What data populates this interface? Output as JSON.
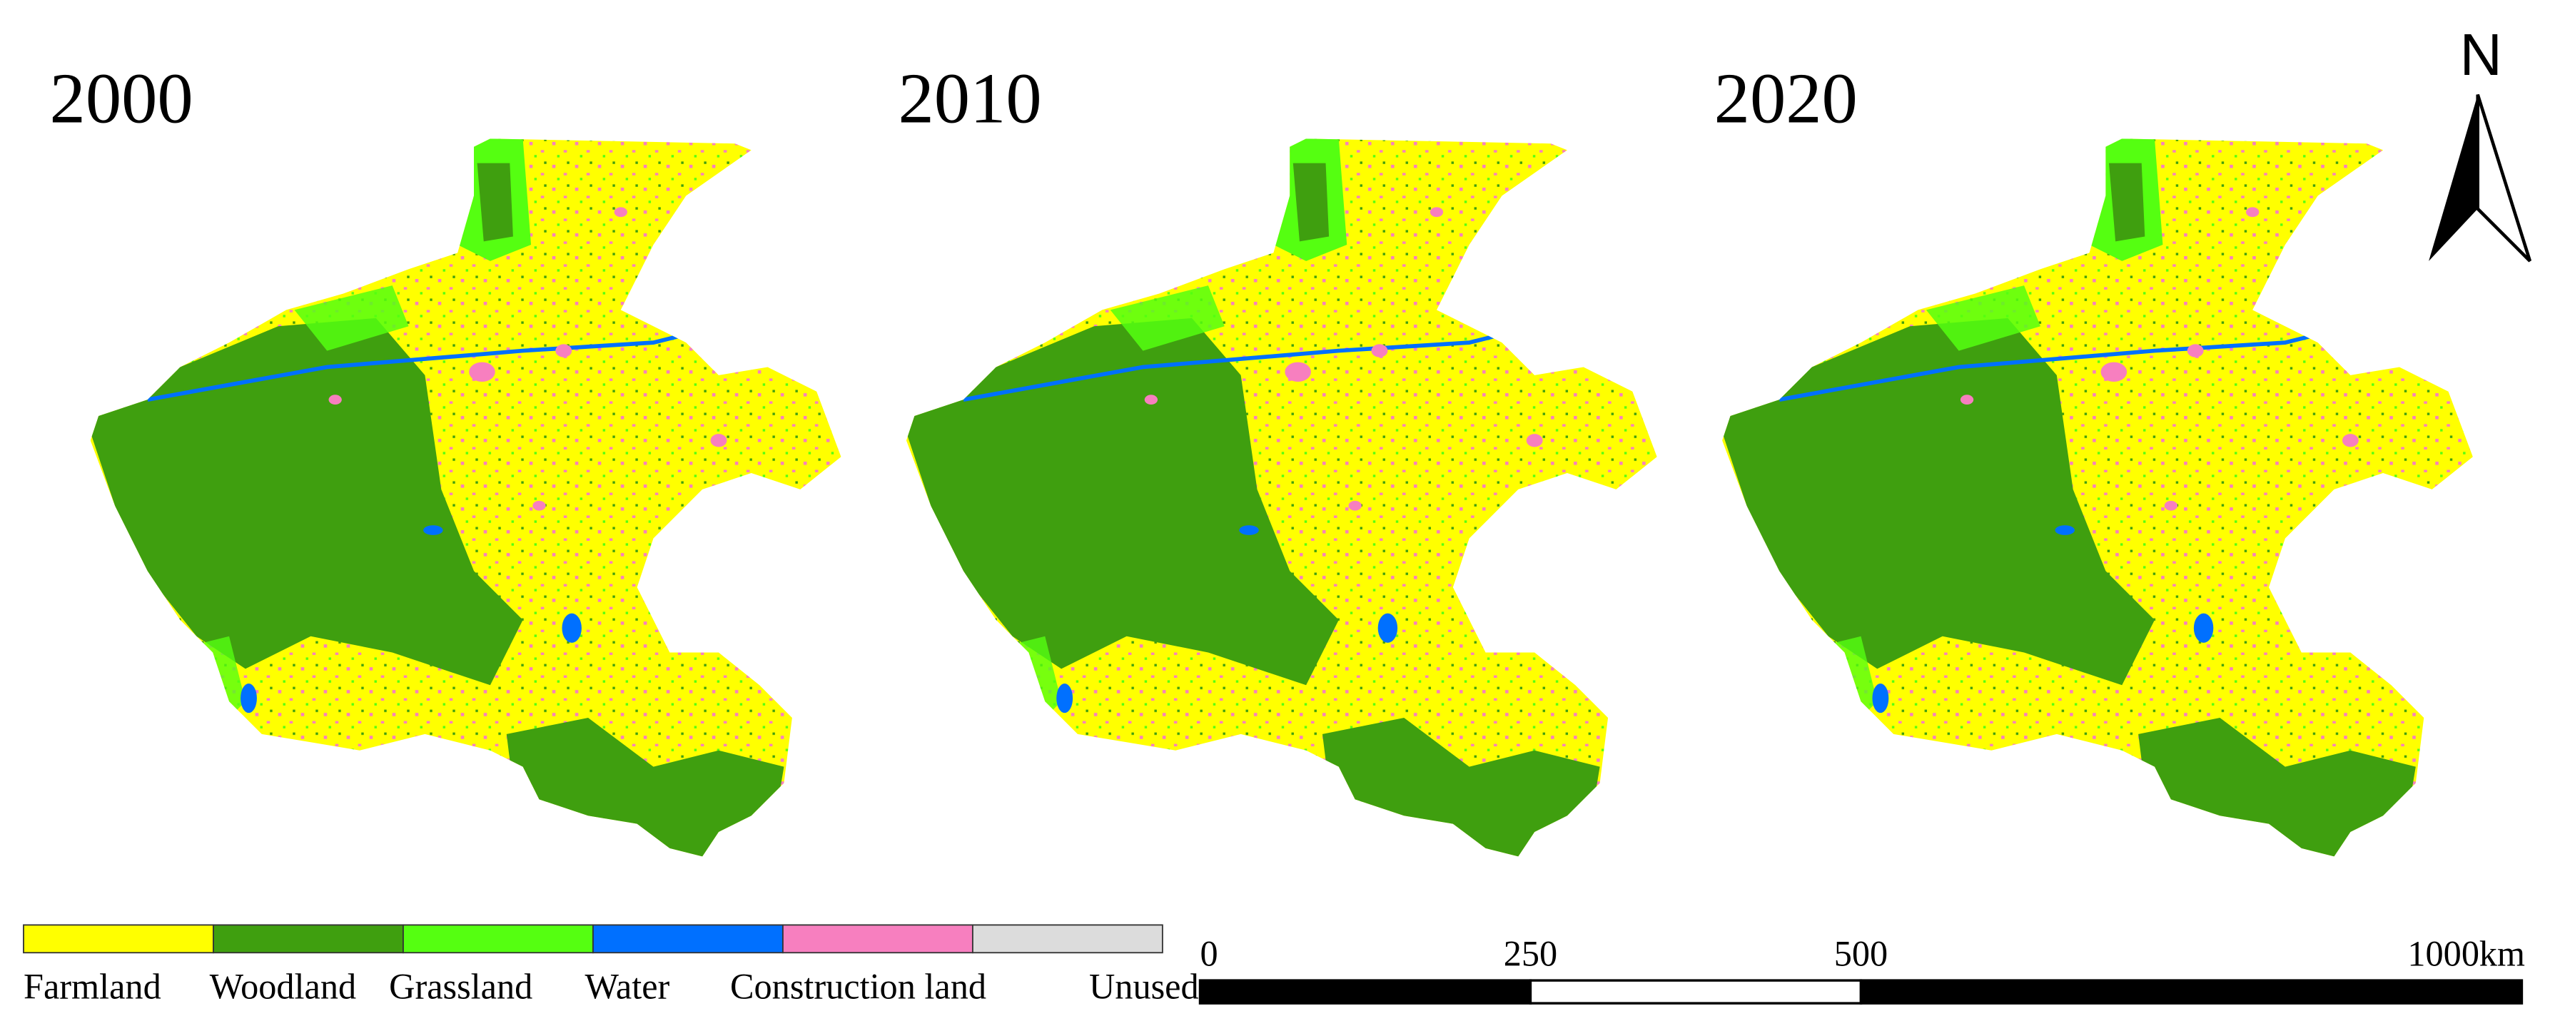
{
  "panels": [
    {
      "title": "2000"
    },
    {
      "title": "2010"
    },
    {
      "title": "2020"
    }
  ],
  "north_arrow": {
    "label": "N"
  },
  "legend": [
    {
      "label": "Farmland",
      "color": "#ffff00"
    },
    {
      "label": "Woodland",
      "color": "#3f9f0f"
    },
    {
      "label": "Grassland",
      "color": "#55ff11"
    },
    {
      "label": "Water",
      "color": "#0070ff"
    },
    {
      "label": "Construction land",
      "color": "#f77fbf"
    },
    {
      "label": "Unused",
      "color": "#dcdcdc"
    }
  ],
  "scale_bar": {
    "ticks": [
      0,
      250,
      500,
      1000
    ],
    "unit": "km"
  }
}
